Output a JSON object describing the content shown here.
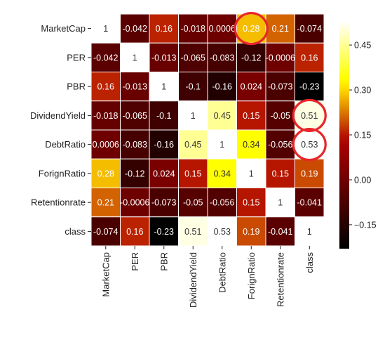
{
  "chart_data": {
    "type": "heatmap",
    "title": "",
    "labels": [
      "MarketCap",
      "PER",
      "PBR",
      "DividendYield",
      "DebtRatio",
      "ForignRatio",
      "Retentionrate",
      "class"
    ],
    "values": [
      [
        1,
        -0.042,
        0.16,
        -0.018,
        0.0006,
        0.28,
        0.21,
        -0.074
      ],
      [
        -0.042,
        1,
        -0.013,
        -0.065,
        -0.083,
        -0.12,
        -0.0006,
        0.16
      ],
      [
        0.16,
        -0.013,
        1,
        -0.1,
        -0.16,
        0.024,
        -0.073,
        -0.23
      ],
      [
        -0.018,
        -0.065,
        -0.1,
        1,
        0.45,
        0.15,
        -0.05,
        0.51
      ],
      [
        0.0006,
        -0.083,
        -0.16,
        0.45,
        1,
        0.34,
        -0.056,
        0.53
      ],
      [
        0.28,
        -0.12,
        0.024,
        0.15,
        0.34,
        1,
        0.15,
        0.19
      ],
      [
        0.21,
        -0.0006,
        -0.073,
        -0.05,
        -0.056,
        0.15,
        1,
        -0.041
      ],
      [
        -0.074,
        0.16,
        -0.23,
        0.51,
        0.53,
        0.19,
        -0.041,
        1
      ]
    ],
    "display": [
      [
        "1",
        "-0.042",
        "0.16",
        "-0.018",
        "0.0006",
        "0.28",
        "0.21",
        "-0.074"
      ],
      [
        "-0.042",
        "1",
        "-0.013",
        "-0.065",
        "-0.083",
        "-0.12",
        "-0.0006",
        "0.16"
      ],
      [
        "0.16",
        "-0.013",
        "1",
        "-0.1",
        "-0.16",
        "0.024",
        "-0.073",
        "-0.23"
      ],
      [
        "-0.018",
        "-0.065",
        "-0.1",
        "1",
        "0.45",
        "0.15",
        "-0.05",
        "0.51"
      ],
      [
        "0.0006",
        "-0.083",
        "-0.16",
        "0.45",
        "1",
        "0.34",
        "-0.056",
        "0.53"
      ],
      [
        "0.28",
        "-0.12",
        "0.024",
        "0.15",
        "0.34",
        "1",
        "0.15",
        "0.19"
      ],
      [
        "0.21",
        "-0.0006",
        "-0.073",
        "-0.05",
        "-0.056",
        "0.15",
        "1",
        "-0.041"
      ],
      [
        "-0.074",
        "0.16",
        "-0.23",
        "0.51",
        "0.53",
        "0.19",
        "-0.041",
        "1"
      ]
    ],
    "colormap": "gist_heat",
    "color_range": [
      -0.23,
      0.53
    ],
    "colorbar_ticks": [
      0.45,
      0.3,
      0.15,
      0.0,
      -0.15
    ],
    "colorbar_tick_labels": [
      "0.45",
      "0.30",
      "0.15",
      "0.00",
      "−0.15"
    ],
    "highlighted_cells": [
      [
        0,
        5
      ],
      [
        3,
        7
      ],
      [
        4,
        7
      ]
    ],
    "highlight_color": "#e8262a"
  }
}
